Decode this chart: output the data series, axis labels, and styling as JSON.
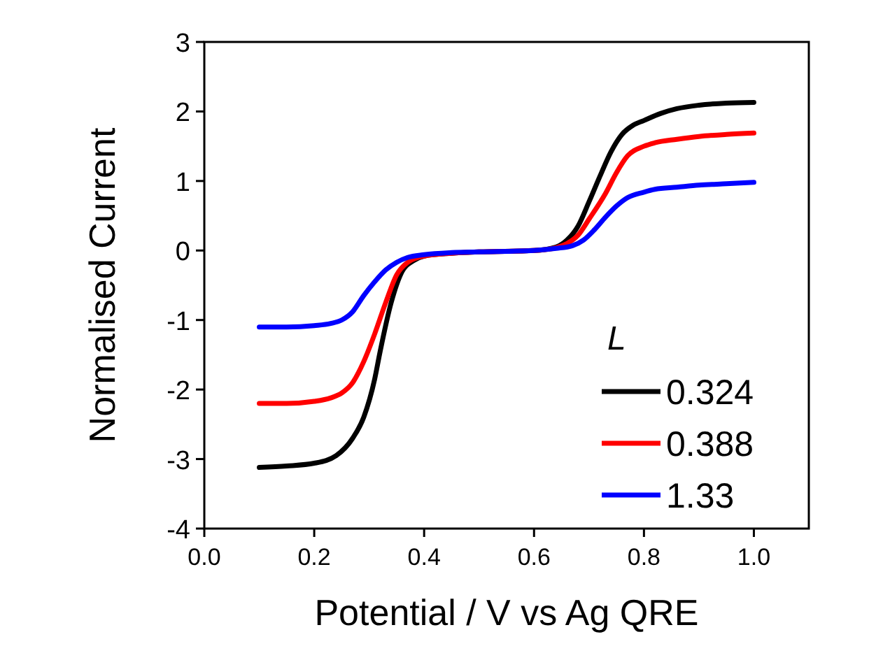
{
  "chart_data": {
    "type": "line",
    "xlabel": "Potential / V vs Ag QRE",
    "ylabel": "Normalised Current",
    "legend_title": "L",
    "legend": "bottom right",
    "grid": false,
    "line_style": "solid",
    "xlim": [
      0,
      1.1
    ],
    "xticks": [
      {
        "value": 0,
        "label": "0.0"
      },
      0.2,
      0.4,
      0.6,
      0.8,
      {
        "value": 1,
        "label": "1.0"
      }
    ],
    "ylim": [
      -4,
      3
    ],
    "yticks": [
      -4,
      -3,
      -2,
      -1,
      0,
      1,
      2,
      3
    ],
    "series": [
      {
        "name": "0.324",
        "color": "#000000",
        "x": [
          0.1,
          0.15,
          0.2,
          0.24,
          0.27,
          0.29,
          0.31,
          0.32,
          0.34,
          0.36,
          0.38,
          0.4,
          0.45,
          0.5,
          0.6,
          0.64,
          0.66,
          0.68,
          0.7,
          0.72,
          0.74,
          0.76,
          0.78,
          0.8,
          0.83,
          0.86,
          0.9,
          0.95,
          1.0
        ],
        "values": [
          -3.12,
          -3.1,
          -3.06,
          -2.95,
          -2.7,
          -2.4,
          -1.85,
          -1.45,
          -0.75,
          -0.3,
          -0.15,
          -0.08,
          -0.04,
          -0.02,
          0.0,
          0.05,
          0.15,
          0.35,
          0.7,
          1.07,
          1.42,
          1.67,
          1.8,
          1.87,
          1.97,
          2.04,
          2.09,
          2.12,
          2.13
        ]
      },
      {
        "name": "0.388",
        "color": "#ff0000",
        "x": [
          0.1,
          0.15,
          0.2,
          0.23,
          0.25,
          0.27,
          0.29,
          0.31,
          0.33,
          0.35,
          0.37,
          0.4,
          0.45,
          0.5,
          0.6,
          0.64,
          0.66,
          0.68,
          0.7,
          0.73,
          0.75,
          0.77,
          0.8,
          0.82,
          0.86,
          0.9,
          0.95,
          1.0
        ],
        "values": [
          -2.2,
          -2.2,
          -2.17,
          -2.12,
          -2.05,
          -1.9,
          -1.6,
          -1.2,
          -0.75,
          -0.35,
          -0.17,
          -0.08,
          -0.04,
          -0.02,
          0.0,
          0.04,
          0.1,
          0.22,
          0.45,
          0.82,
          1.12,
          1.36,
          1.5,
          1.55,
          1.6,
          1.64,
          1.67,
          1.69
        ]
      },
      {
        "name": "1.33",
        "color": "#0000ff",
        "x": [
          0.1,
          0.15,
          0.2,
          0.23,
          0.25,
          0.27,
          0.29,
          0.31,
          0.33,
          0.35,
          0.37,
          0.4,
          0.45,
          0.5,
          0.6,
          0.64,
          0.67,
          0.69,
          0.71,
          0.73,
          0.75,
          0.77,
          0.8,
          0.82,
          0.86,
          0.9,
          0.95,
          1.0
        ],
        "values": [
          -1.1,
          -1.1,
          -1.08,
          -1.05,
          -1.0,
          -0.88,
          -0.65,
          -0.45,
          -0.28,
          -0.17,
          -0.1,
          -0.06,
          -0.03,
          -0.02,
          0.0,
          0.03,
          0.07,
          0.15,
          0.3,
          0.48,
          0.64,
          0.76,
          0.84,
          0.88,
          0.91,
          0.94,
          0.96,
          0.98
        ]
      }
    ]
  }
}
